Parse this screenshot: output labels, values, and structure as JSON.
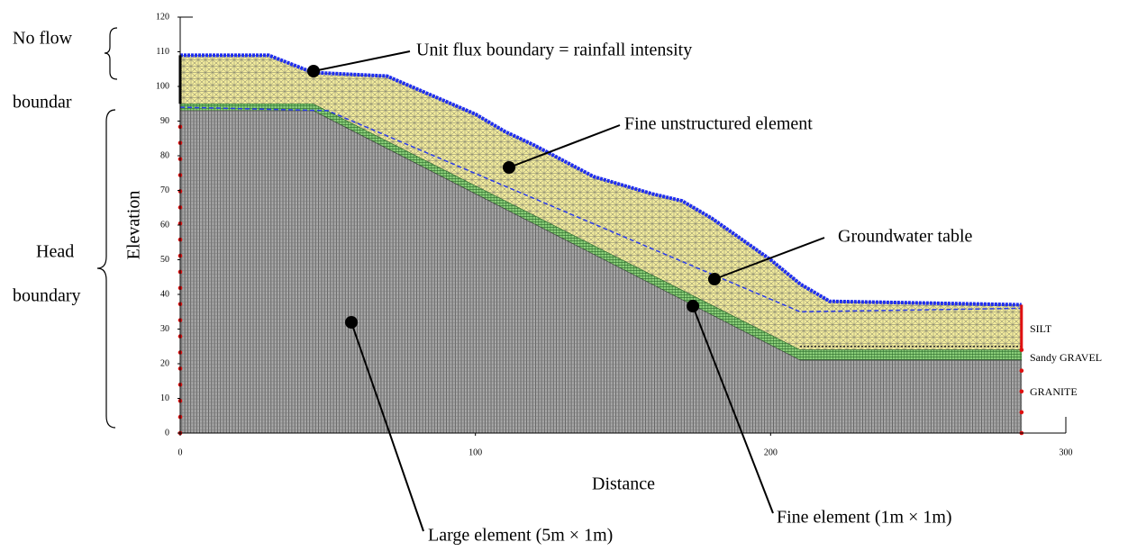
{
  "left_labels": {
    "no_flow": [
      "No  flow",
      "boundar"
    ],
    "head": [
      "Head",
      "boundary"
    ]
  },
  "axes": {
    "y_label": "Elevation",
    "x_label": "Distance",
    "xlim": [
      0,
      300
    ],
    "ylim": [
      0,
      120
    ],
    "xticks": [
      0,
      100,
      200,
      300
    ],
    "yticks": [
      0,
      10,
      20,
      30,
      40,
      50,
      60,
      70,
      80,
      90,
      100,
      110,
      120
    ]
  },
  "layers": [
    "SILT",
    "Sandy GRAVEL",
    "GRANITE"
  ],
  "annotations": [
    "Unit flux boundary = rainfall intensity",
    "Fine unstructured element",
    "Groundwater table",
    "Large element (5m × 1m)",
    "Fine element (1m × 1m)"
  ]
}
